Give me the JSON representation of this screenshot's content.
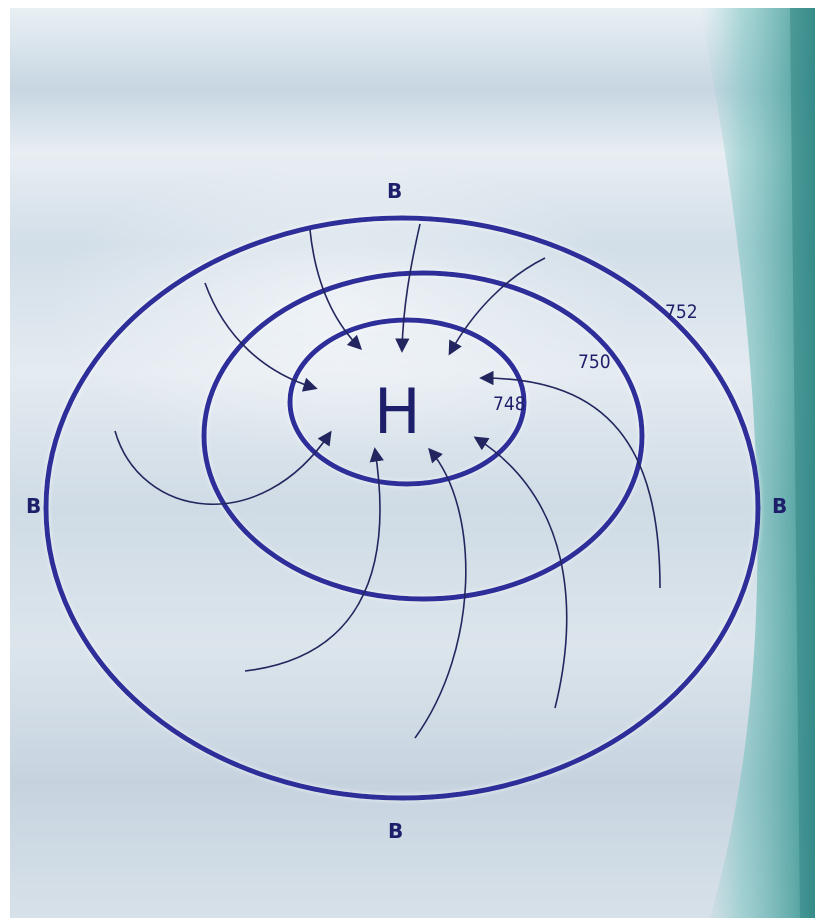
{
  "center": {
    "label": "H"
  },
  "isobars": [
    {
      "value": "748"
    },
    {
      "value": "750"
    },
    {
      "value": "752"
    }
  ],
  "direction_labels": {
    "top": "B",
    "bottom": "B",
    "left": "B",
    "right": "B"
  },
  "colors": {
    "isobar": "#2d2f9a",
    "arrow": "#23265e",
    "text": "#1e1f6a",
    "background": "#d6e1ea",
    "accent_teal": "#3aa3a0"
  }
}
